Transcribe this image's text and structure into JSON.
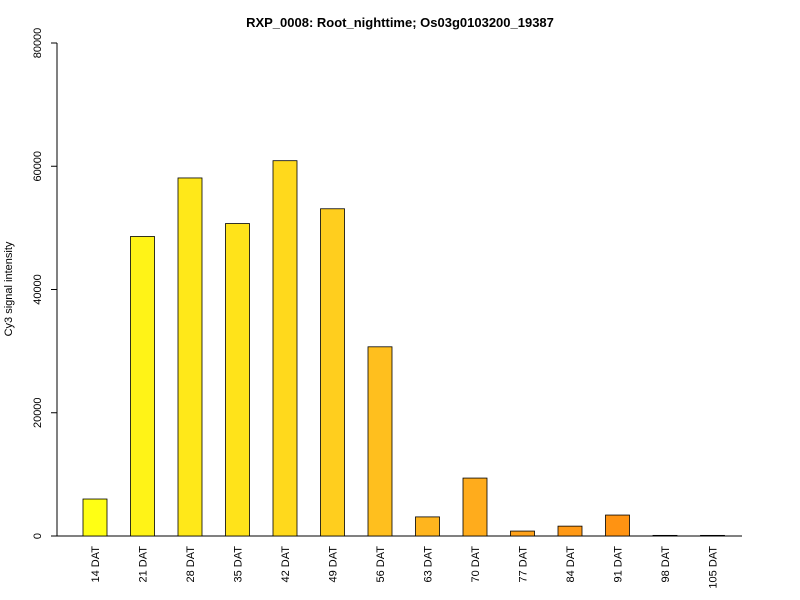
{
  "chart_data": {
    "type": "bar",
    "title": "RXP_0008: Root_nighttime; Os03g0103200_19387",
    "xlabel": "",
    "ylabel": "Cy3 signal intensity",
    "ylim": [
      0,
      80000
    ],
    "yticks": [
      0,
      20000,
      40000,
      60000,
      80000
    ],
    "categories": [
      "14 DAT",
      "21 DAT",
      "28 DAT",
      "35 DAT",
      "42 DAT",
      "49 DAT",
      "56 DAT",
      "63 DAT",
      "70 DAT",
      "77 DAT",
      "84 DAT",
      "91 DAT",
      "98 DAT",
      "105 DAT"
    ],
    "values": [
      6000,
      48600,
      58100,
      50700,
      60900,
      53100,
      30700,
      3100,
      9400,
      800,
      1600,
      3400,
      100,
      100
    ],
    "colors": [
      "#FFFF14",
      "#FFF317",
      "#FFE819",
      "#FFE31A",
      "#FFD91C",
      "#FFCE1E",
      "#FFBF1E",
      "#FFB51E",
      "#FFAC1C",
      "#FFA21A",
      "#FF9916",
      "#FF9312",
      "#FF8C0F",
      "#FF870C"
    ],
    "grid": false,
    "legend": "none"
  }
}
